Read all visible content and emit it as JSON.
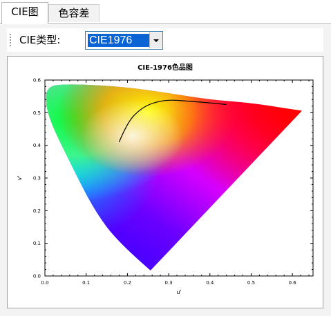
{
  "tabs": [
    {
      "label": "CIE图",
      "active": true
    },
    {
      "label": "色容差",
      "active": false
    }
  ],
  "toolbar": {
    "cie_type_label": "CIE类型:",
    "cie_type_value": "CIE1976"
  },
  "colors": {
    "selection": "#0a64d4",
    "panel": "#f3f3f3",
    "frame_border": "#a0a0a0"
  },
  "chart_data": {
    "type": "scatter",
    "title": "CIE-1976色品图",
    "xlabel": "u'",
    "ylabel": "v'",
    "xlim": [
      0.0,
      0.65
    ],
    "ylim": [
      0.0,
      0.6
    ],
    "xticks": [
      "0.0",
      "0.1",
      "0.2",
      "0.3",
      "0.4",
      "0.5",
      "0.6"
    ],
    "yticks": [
      "0.0",
      "0.1",
      "0.2",
      "0.3",
      "0.4",
      "0.5",
      "0.6"
    ],
    "grid": false,
    "series": [
      {
        "role": "spectral-locus",
        "points": [
          [
            0.256,
            0.017
          ],
          [
            0.18,
            0.1
          ],
          [
            0.12,
            0.2
          ],
          [
            0.06,
            0.35
          ],
          [
            0.01,
            0.48
          ],
          [
            0.0,
            0.55
          ],
          [
            0.01,
            0.58
          ],
          [
            0.04,
            0.587
          ],
          [
            0.1,
            0.586
          ],
          [
            0.2,
            0.578
          ],
          [
            0.3,
            0.56
          ],
          [
            0.4,
            0.54
          ],
          [
            0.5,
            0.53
          ],
          [
            0.6,
            0.51
          ],
          [
            0.623,
            0.506
          ]
        ]
      },
      {
        "role": "planckian-locus",
        "points": [
          [
            0.18,
            0.41
          ],
          [
            0.2,
            0.47
          ],
          [
            0.23,
            0.51
          ],
          [
            0.26,
            0.53
          ],
          [
            0.3,
            0.54
          ],
          [
            0.35,
            0.535
          ],
          [
            0.4,
            0.53
          ],
          [
            0.44,
            0.525
          ]
        ]
      }
    ]
  }
}
